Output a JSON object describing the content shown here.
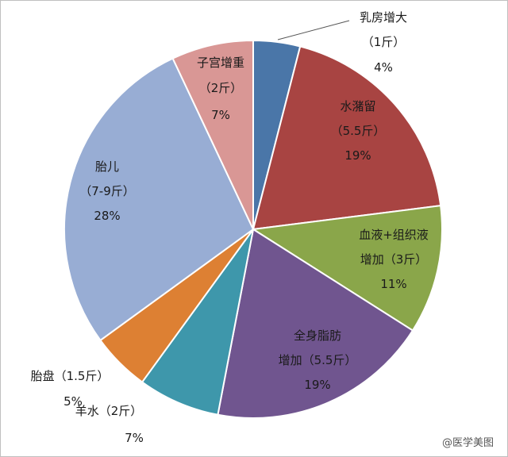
{
  "chart_data": {
    "type": "pie",
    "slices": [
      {
        "name": "乳房增大",
        "amount": "（1斤）",
        "percent": "4%",
        "value": 4,
        "color": "#4a76a8"
      },
      {
        "name": "水潴留",
        "amount": "（5.5斤）",
        "percent": "19%",
        "value": 19,
        "color": "#a84442"
      },
      {
        "name": "血液+组织液",
        "amount": "增加（3斤）",
        "percent": "11%",
        "value": 11,
        "color": "#8aa64a"
      },
      {
        "name": "全身脂肪",
        "amount": "增加（5.5斤）",
        "percent": "19%",
        "value": 19,
        "color": "#70558f"
      },
      {
        "name": "羊水",
        "amount": "（2斤）",
        "percent": "7%",
        "value": 7,
        "color": "#3e97ab"
      },
      {
        "name": "胎盘",
        "amount": "（1.5斤）",
        "percent": "5%",
        "value": 5,
        "color": "#dd8033"
      },
      {
        "name": "胎儿",
        "amount": "（7-9斤）",
        "percent": "28%",
        "value": 28,
        "color": "#98add4"
      },
      {
        "name": "子宫增重",
        "amount": "（2斤）",
        "percent": "7%",
        "value": 7,
        "color": "#d99795"
      }
    ]
  },
  "watermark": "@医学美图"
}
